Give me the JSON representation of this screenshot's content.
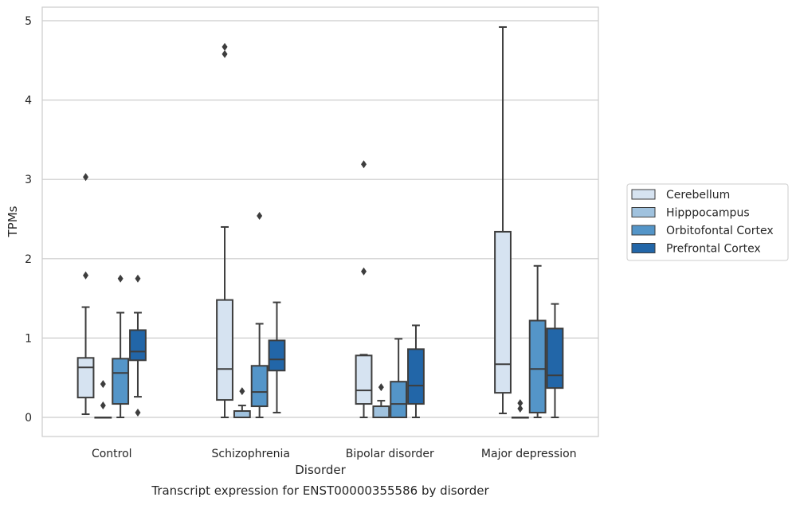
{
  "chart_data": {
    "type": "box",
    "caption": "Transcript expression for ENST00000355586 by disorder",
    "xlabel": "Disorder",
    "ylabel": "TPMs",
    "ylim": [
      -0.24,
      5.18
    ],
    "yticks": [
      0,
      1,
      2,
      3,
      4,
      5
    ],
    "grid": true,
    "legend_position": "right",
    "categories": [
      "Control",
      "Schizophrenia",
      "Bipolar disorder",
      "Major depression"
    ],
    "series": [
      {
        "name": "Cerebellum",
        "color": "#d6e3f1",
        "boxes": [
          {
            "whislo": 0.04,
            "q1": 0.25,
            "med": 0.63,
            "q3": 0.75,
            "whishi": 1.39,
            "fliers": [
              1.79,
              3.03
            ]
          },
          {
            "whislo": 0.0,
            "q1": 0.22,
            "med": 0.61,
            "q3": 1.48,
            "whishi": 2.4,
            "fliers": [
              4.58,
              4.67
            ]
          },
          {
            "whislo": 0.0,
            "q1": 0.17,
            "med": 0.34,
            "q3": 0.78,
            "whishi": 0.79,
            "fliers": [
              1.84,
              3.19
            ]
          },
          {
            "whislo": 0.05,
            "q1": 0.31,
            "med": 0.67,
            "q3": 2.34,
            "whishi": 4.92,
            "fliers": []
          }
        ]
      },
      {
        "name": "Hipppocampus",
        "color": "#a0c2de",
        "boxes": [
          {
            "whislo": 0.0,
            "q1": 0.0,
            "med": 0.0,
            "q3": 0.0,
            "whishi": 0.0,
            "fliers": [
              0.15,
              0.42
            ]
          },
          {
            "whislo": 0.0,
            "q1": 0.0,
            "med": 0.0,
            "q3": 0.08,
            "whishi": 0.15,
            "fliers": [
              0.33
            ]
          },
          {
            "whislo": 0.0,
            "q1": 0.0,
            "med": 0.0,
            "q3": 0.14,
            "whishi": 0.21,
            "fliers": [
              0.38
            ]
          },
          {
            "whislo": 0.0,
            "q1": 0.0,
            "med": 0.0,
            "q3": 0.0,
            "whishi": 0.0,
            "fliers": [
              0.11,
              0.18
            ]
          }
        ]
      },
      {
        "name": "Orbitofontal Cortex",
        "color": "#5495c8",
        "boxes": [
          {
            "whislo": 0.0,
            "q1": 0.17,
            "med": 0.56,
            "q3": 0.74,
            "whishi": 1.32,
            "fliers": [
              1.75
            ]
          },
          {
            "whislo": 0.0,
            "q1": 0.14,
            "med": 0.32,
            "q3": 0.65,
            "whishi": 1.18,
            "fliers": [
              2.54
            ]
          },
          {
            "whislo": 0.0,
            "q1": 0.0,
            "med": 0.17,
            "q3": 0.45,
            "whishi": 0.99,
            "fliers": []
          },
          {
            "whislo": 0.0,
            "q1": 0.06,
            "med": 0.61,
            "q3": 1.22,
            "whishi": 1.91,
            "fliers": []
          }
        ]
      },
      {
        "name": "Prefrontal Cortex",
        "color": "#2266a8",
        "boxes": [
          {
            "whislo": 0.26,
            "q1": 0.72,
            "med": 0.83,
            "q3": 1.1,
            "whishi": 1.32,
            "fliers": [
              0.06,
              1.75
            ]
          },
          {
            "whislo": 0.06,
            "q1": 0.59,
            "med": 0.73,
            "q3": 0.97,
            "whishi": 1.45,
            "fliers": []
          },
          {
            "whislo": 0.0,
            "q1": 0.17,
            "med": 0.4,
            "q3": 0.86,
            "whishi": 1.16,
            "fliers": []
          },
          {
            "whislo": 0.0,
            "q1": 0.37,
            "med": 0.53,
            "q3": 1.12,
            "whishi": 1.43,
            "fliers": []
          }
        ]
      }
    ]
  }
}
